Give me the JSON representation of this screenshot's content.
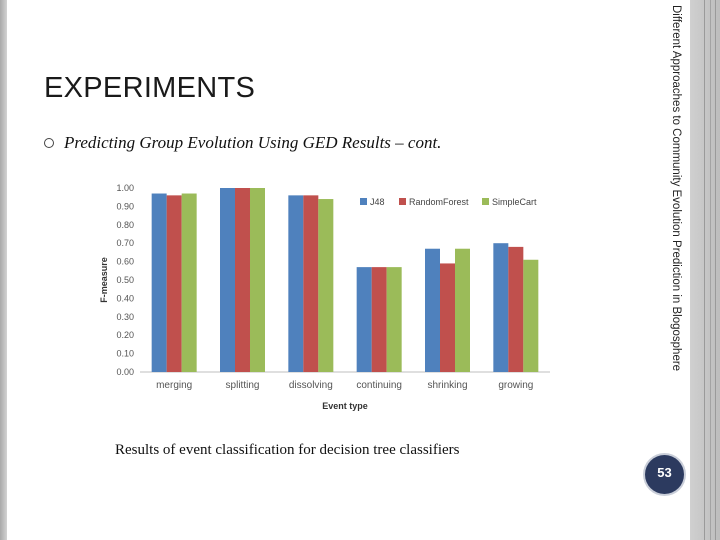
{
  "slide": {
    "title": "EXPERIMENTS",
    "subtitle": "Predicting Group Evolution Using GED Results – cont.",
    "side_text": "Different Approaches to Community Evolution Prediction in Blogosphere",
    "caption": "Results of event classification for decision tree classifiers",
    "page_number": "53"
  },
  "colors": {
    "J48": "#4f81bd",
    "RandomForest": "#c0504d",
    "SimpleCart": "#9bbb59",
    "badge": "#2c3a5f"
  },
  "chart_data": {
    "type": "bar",
    "title": "",
    "xlabel": "Event type",
    "ylabel": "F-measure",
    "ylim": [
      0,
      1
    ],
    "yticks": [
      "0.00",
      "0.10",
      "0.20",
      "0.30",
      "0.40",
      "0.50",
      "0.60",
      "0.70",
      "0.80",
      "0.90",
      "1.00"
    ],
    "categories": [
      "merging",
      "splitting",
      "dissolving",
      "continuing",
      "shrinking",
      "growing"
    ],
    "series": [
      {
        "name": "J48",
        "values": [
          0.97,
          1.0,
          0.96,
          0.57,
          0.67,
          0.7
        ]
      },
      {
        "name": "RandomForest",
        "values": [
          0.96,
          1.0,
          0.96,
          0.57,
          0.59,
          0.68
        ]
      },
      {
        "name": "SimpleCart",
        "values": [
          0.97,
          1.0,
          0.94,
          0.57,
          0.67,
          0.61
        ]
      }
    ],
    "legend_position": "top-right",
    "grid": false
  }
}
